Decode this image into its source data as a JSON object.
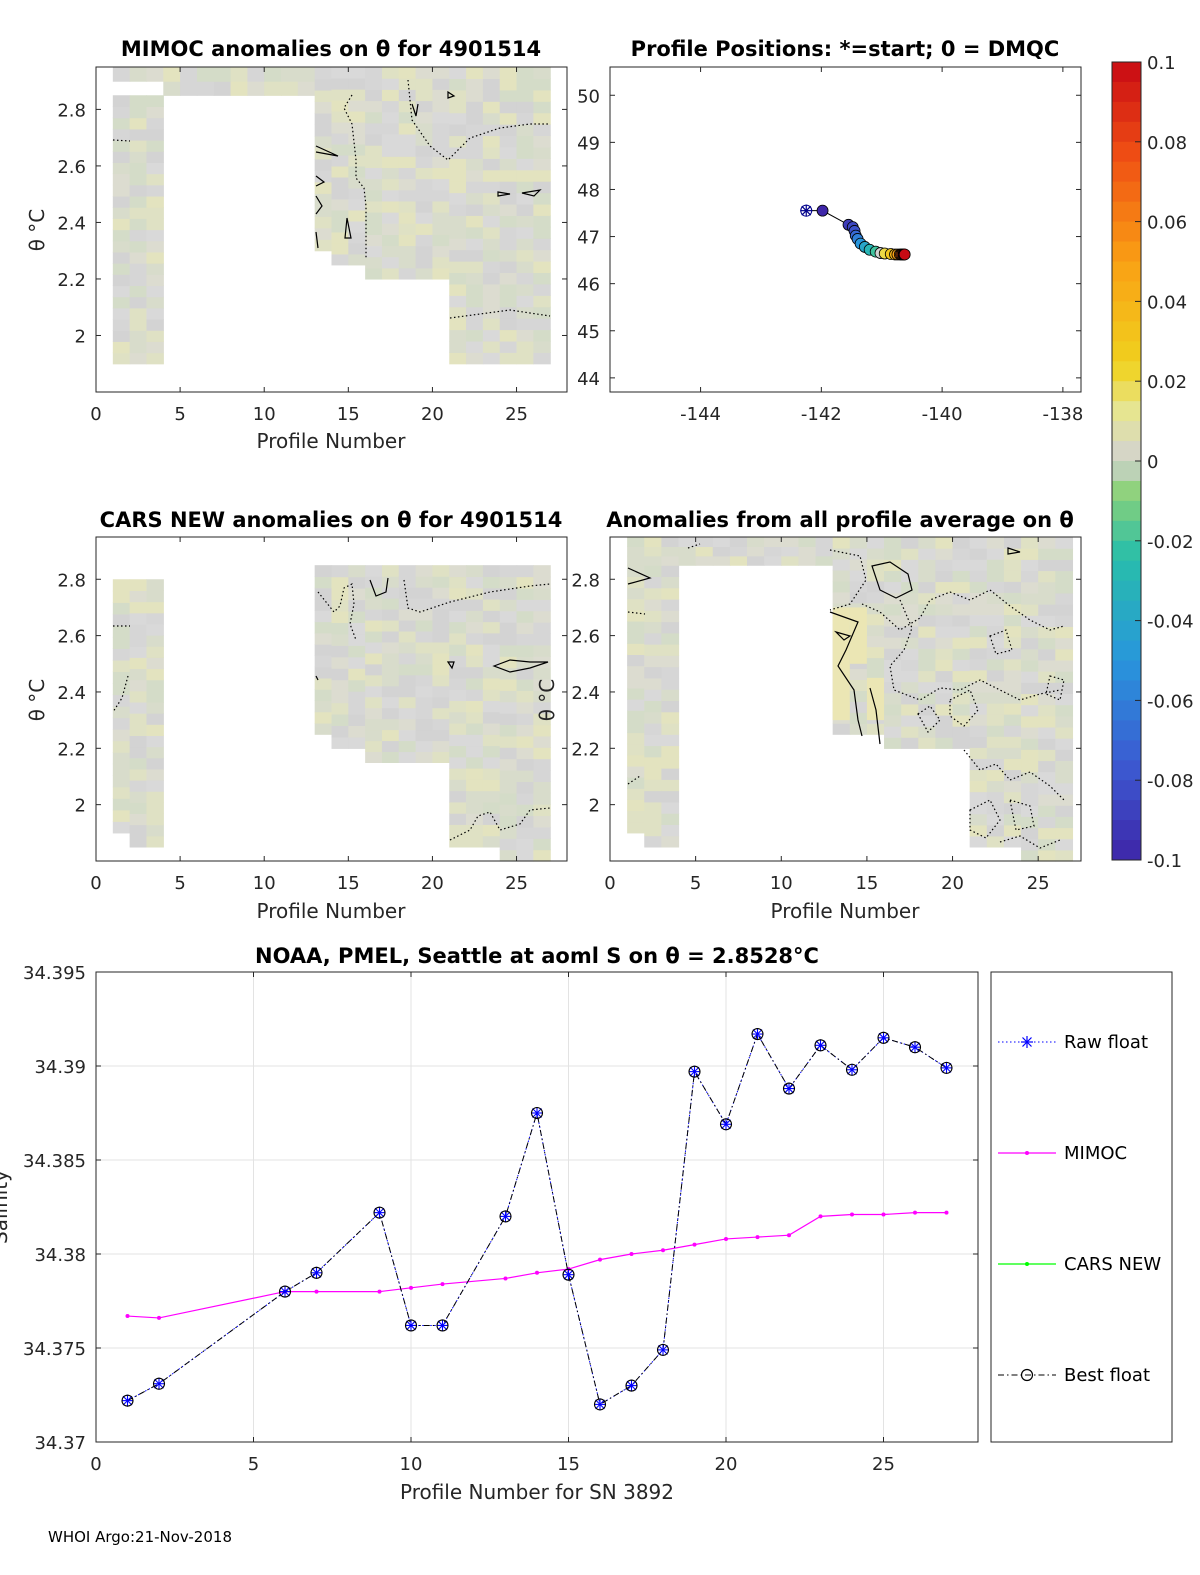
{
  "footer": "WHOI Argo:21-Nov-2018",
  "colorbar": {
    "ticks": [
      "0.1",
      "0.08",
      "0.06",
      "0.04",
      "0.02",
      "0",
      "-0.02",
      "-0.04",
      "-0.06",
      "-0.08",
      "-0.1"
    ],
    "min": -0.1,
    "max": 0.1
  },
  "chart_data": [
    {
      "id": "mimoc",
      "type": "heatmap",
      "title": "MIMOC anomalies on θ  for 4901514",
      "xlabel": "Profile Number",
      "ylabel": "θ °C",
      "xlim": [
        0,
        28
      ],
      "ylim": [
        1.8,
        2.95
      ],
      "xticks": [
        "0",
        "5",
        "10",
        "15",
        "20",
        "25"
      ],
      "yticks": [
        "2",
        "2.2",
        "2.4",
        "2.6",
        "2.8"
      ]
    },
    {
      "id": "positions",
      "type": "scatter",
      "title": "Profile Positions: *=start; 0 = DMQC",
      "xlim": [
        -145.5,
        -137.7
      ],
      "ylim": [
        43.7,
        50.6
      ],
      "xticks": [
        "-144",
        "-142",
        "-140",
        "-138"
      ],
      "yticks": [
        "44",
        "45",
        "46",
        "47",
        "48",
        "49",
        "50"
      ],
      "start": [
        -142.25,
        47.55
      ],
      "lon": [
        -141.98,
        -141.55,
        -141.48,
        -141.45,
        -141.43,
        -141.4,
        -141.35,
        -141.28,
        -141.2,
        -141.1,
        -141.02,
        -140.95,
        -140.85,
        -140.78,
        -140.74,
        -140.7,
        -140.68,
        -140.66,
        -140.64,
        -140.63,
        -140.62
      ],
      "lat": [
        47.55,
        47.25,
        47.2,
        47.12,
        47.02,
        46.95,
        46.85,
        46.78,
        46.72,
        46.68,
        46.65,
        46.64,
        46.63,
        46.62,
        46.62,
        46.62,
        46.62,
        46.62,
        46.62,
        46.62,
        46.62
      ],
      "anomaly": [
        -0.1,
        -0.09,
        -0.085,
        -0.08,
        -0.07,
        -0.06,
        -0.05,
        -0.04,
        -0.03,
        -0.02,
        0.0,
        0.02,
        0.03,
        0.04,
        0.05,
        0.06,
        0.07,
        0.08,
        0.085,
        0.09,
        0.1
      ]
    },
    {
      "id": "cars",
      "type": "heatmap",
      "title": "CARS NEW anomalies on θ for 4901514",
      "xlabel": "Profile Number",
      "ylabel": "θ °C",
      "xlim": [
        0,
        28
      ],
      "ylim": [
        1.8,
        2.95
      ],
      "xticks": [
        "0",
        "5",
        "10",
        "15",
        "20",
        "25"
      ],
      "yticks": [
        "2",
        "2.2",
        "2.4",
        "2.6",
        "2.8"
      ]
    },
    {
      "id": "avg",
      "type": "heatmap",
      "title": "Anomalies from all profile average on θ",
      "xlabel": "Profile Number",
      "ylabel": "θ °C",
      "xlim": [
        0,
        27.5
      ],
      "ylim": [
        1.8,
        2.95
      ],
      "xticks": [
        "0",
        "5",
        "10",
        "15",
        "20",
        "25"
      ],
      "yticks": [
        "2",
        "2.2",
        "2.4",
        "2.6",
        "2.8"
      ]
    },
    {
      "id": "salinity",
      "type": "line",
      "title": "NOAA, PMEL, Seattle at aoml S on θ = 2.8528°C",
      "xlabel": "Profile Number for SN 3892",
      "ylabel": "Salinity",
      "xlim": [
        0,
        28
      ],
      "ylim": [
        34.37,
        34.395
      ],
      "xticks": [
        "0",
        "5",
        "10",
        "15",
        "20",
        "25"
      ],
      "yticks": [
        "34.37",
        "34.375",
        "34.38",
        "34.385",
        "34.39",
        "34.395"
      ],
      "x_float": [
        1,
        2,
        6,
        7,
        9,
        10,
        11,
        13,
        14,
        15,
        16,
        17,
        18,
        19,
        20,
        21,
        22,
        23,
        24,
        25,
        26,
        27
      ],
      "x_mimoc": [
        1,
        2,
        6,
        7,
        9,
        10,
        11,
        13,
        14,
        15,
        16,
        17,
        18,
        19,
        20,
        21,
        22,
        23,
        24,
        25,
        26,
        27
      ],
      "series": [
        {
          "name": "Raw float",
          "values": [
            34.3722,
            34.3731,
            34.378,
            34.379,
            34.3822,
            34.3762,
            34.3762,
            34.382,
            34.3875,
            34.3789,
            34.372,
            34.373,
            34.3749,
            34.3897,
            34.3869,
            34.3917,
            34.3888,
            34.3911,
            34.3898,
            34.3915,
            34.391,
            34.3899
          ]
        },
        {
          "name": "MIMOC",
          "values": [
            34.3767,
            34.3766,
            34.378,
            34.378,
            34.378,
            34.3782,
            34.3784,
            34.3787,
            34.379,
            34.3792,
            34.3797,
            34.38,
            34.3802,
            34.3805,
            34.3808,
            34.3809,
            34.381,
            34.382,
            34.3821,
            34.3821,
            34.3822,
            34.3822
          ]
        },
        {
          "name": "CARS NEW",
          "values": []
        },
        {
          "name": "Best float",
          "values": [
            34.3722,
            34.3731,
            34.378,
            34.379,
            34.3822,
            34.3762,
            34.3762,
            34.382,
            34.3875,
            34.3789,
            34.372,
            34.373,
            34.3749,
            34.3897,
            34.3869,
            34.3917,
            34.3888,
            34.3911,
            34.3898,
            34.3915,
            34.391,
            34.3899
          ]
        }
      ]
    }
  ]
}
